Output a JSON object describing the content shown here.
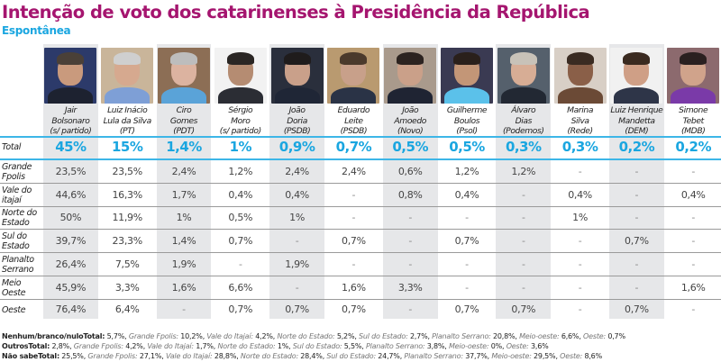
{
  "header": {
    "title": "Intenção de voto dos catarinenses à Presidência da República",
    "subtitle": "Espontânea"
  },
  "colors": {
    "title": "#a5156f",
    "accent": "#1aa6e0",
    "shade": "#e6e7e9"
  },
  "candidates": [
    {
      "line1": "Jair",
      "line2": "Bolsonaro",
      "party": "(s/ partido)",
      "photo": "photo-bolsonaro"
    },
    {
      "line1": "Luiz Inácio",
      "line2": "Lula da Silva",
      "party": "(PT)",
      "photo": "photo-lula"
    },
    {
      "line1": "Ciro",
      "line2": "Gomes",
      "party": "(PDT)",
      "photo": "photo-ciro"
    },
    {
      "line1": "Sérgio",
      "line2": "Moro",
      "party": "(s/ partido)",
      "photo": "photo-moro"
    },
    {
      "line1": "João",
      "line2": "Doria",
      "party": "(PSDB)",
      "photo": "photo-doria"
    },
    {
      "line1": "Eduardo",
      "line2": "Leite",
      "party": "(PSDB)",
      "photo": "photo-leite"
    },
    {
      "line1": "João",
      "line2": "Amoedo",
      "party": "(Novo)",
      "photo": "photo-amoedo"
    },
    {
      "line1": "Guilherme",
      "line2": "Boulos",
      "party": "(Psol)",
      "photo": "photo-boulos"
    },
    {
      "line1": "Álvaro",
      "line2": "Dias",
      "party": "(Podemos)",
      "photo": "photo-alvaro"
    },
    {
      "line1": "Marina",
      "line2": "Silva",
      "party": "(Rede)",
      "photo": "photo-marina"
    },
    {
      "line1": "Luiz Henrique",
      "line2": "Mandetta",
      "party": "(DEM)",
      "photo": "photo-mandetta"
    },
    {
      "line1": "Simone",
      "line2": "Tebet",
      "party": "(MDB)",
      "photo": "photo-tebet"
    }
  ],
  "rows": [
    {
      "label1": "Total",
      "label2": "",
      "total": true,
      "values": [
        "45%",
        "15%",
        "1,4%",
        "1%",
        "0,9%",
        "0,7%",
        "0,5%",
        "0,5%",
        "0,3%",
        "0,3%",
        "0,2%",
        "0,2%"
      ]
    },
    {
      "label1": "Grande",
      "label2": "Fpolis",
      "values": [
        "23,5%",
        "23,5%",
        "2,4%",
        "1,2%",
        "2,4%",
        "2,4%",
        "0,6%",
        "1,2%",
        "1,2%",
        "-",
        "-",
        "-"
      ]
    },
    {
      "label1": "Vale do",
      "label2": "itajaí",
      "values": [
        "44,6%",
        "16,3%",
        "1,7%",
        "0,4%",
        "0,4%",
        "-",
        "0,8%",
        "0,4%",
        "-",
        "0,4%",
        "-",
        "0,4%"
      ]
    },
    {
      "label1": "Norte do",
      "label2": "Estado",
      "values": [
        "50%",
        "11,9%",
        "1%",
        "0,5%",
        "1%",
        "-",
        "-",
        "-",
        "-",
        "1%",
        "-",
        "-"
      ]
    },
    {
      "label1": "Sul do",
      "label2": "Estado",
      "values": [
        "39,7%",
        "23,3%",
        "1,4%",
        "0,7%",
        "-",
        "0,7%",
        "-",
        "0,7%",
        "-",
        "-",
        "0,7%",
        "-"
      ]
    },
    {
      "label1": "Planalto",
      "label2": "Serrano",
      "values": [
        "26,4%",
        "7,5%",
        "1,9%",
        "-",
        "1,9%",
        "-",
        "-",
        "-",
        "-",
        "-",
        "-",
        "-"
      ]
    },
    {
      "label1": "Meio",
      "label2": "Oeste",
      "values": [
        "45,9%",
        "3,3%",
        "1,6%",
        "6,6%",
        "-",
        "1,6%",
        "3,3%",
        "-",
        "-",
        "-",
        "-",
        "1,6%"
      ]
    },
    {
      "label1": "Oeste",
      "label2": "",
      "values": [
        "76,4%",
        "6,4%",
        "-",
        "0,7%",
        "0,7%",
        "0,7%",
        "-",
        "0,7%",
        "0,7%",
        "-",
        "0,7%",
        "-"
      ]
    }
  ],
  "footer": [
    {
      "title": "Nenhum/branco/nulo",
      "total_label": "Total:",
      "total": "5,7%",
      "items": [
        {
          "region": "Grande Fpolis:",
          "value": "10,2%"
        },
        {
          "region": "Vale do Itajaí:",
          "value": "4,2%"
        },
        {
          "region": "Norte do Estado:",
          "value": "5,2%"
        },
        {
          "region": "Sul do Estado:",
          "value": "2,7%"
        },
        {
          "region": "Planalto Serrano:",
          "value": "20,8%"
        },
        {
          "region": "Meio-oeste:",
          "value": "6,6%"
        },
        {
          "region": "Oeste:",
          "value": "0,7%"
        }
      ]
    },
    {
      "title": "Outros",
      "total_label": "Total:",
      "total": "2,8%",
      "items": [
        {
          "region": "Grande Fpolis:",
          "value": "4,2%"
        },
        {
          "region": "Vale do Itajaí:",
          "value": "1,7%"
        },
        {
          "region": "Norte do Estado:",
          "value": "1%"
        },
        {
          "region": "Sul do Estado:",
          "value": "5,5%"
        },
        {
          "region": "Planalto Serrano:",
          "value": "3,8%"
        },
        {
          "region": "Meio-oeste:",
          "value": "0%"
        },
        {
          "region": "Oeste:",
          "value": "3,6%"
        }
      ]
    },
    {
      "title": "Não sabe",
      "total_label": "Total:",
      "total": "25,5%",
      "items": [
        {
          "region": "Grande Fpolis:",
          "value": "27,1%"
        },
        {
          "region": "Vale do Itajaí:",
          "value": "28,8%"
        },
        {
          "region": "Norte do Estado:",
          "value": "28,4%"
        },
        {
          "region": "Sul do Estado:",
          "value": "24,7%"
        },
        {
          "region": "Planalto Serrano:",
          "value": "37,7%"
        },
        {
          "region": "Meio-oeste:",
          "value": "29,5%"
        },
        {
          "region": "Oeste:",
          "value": "8,6%"
        }
      ]
    }
  ]
}
